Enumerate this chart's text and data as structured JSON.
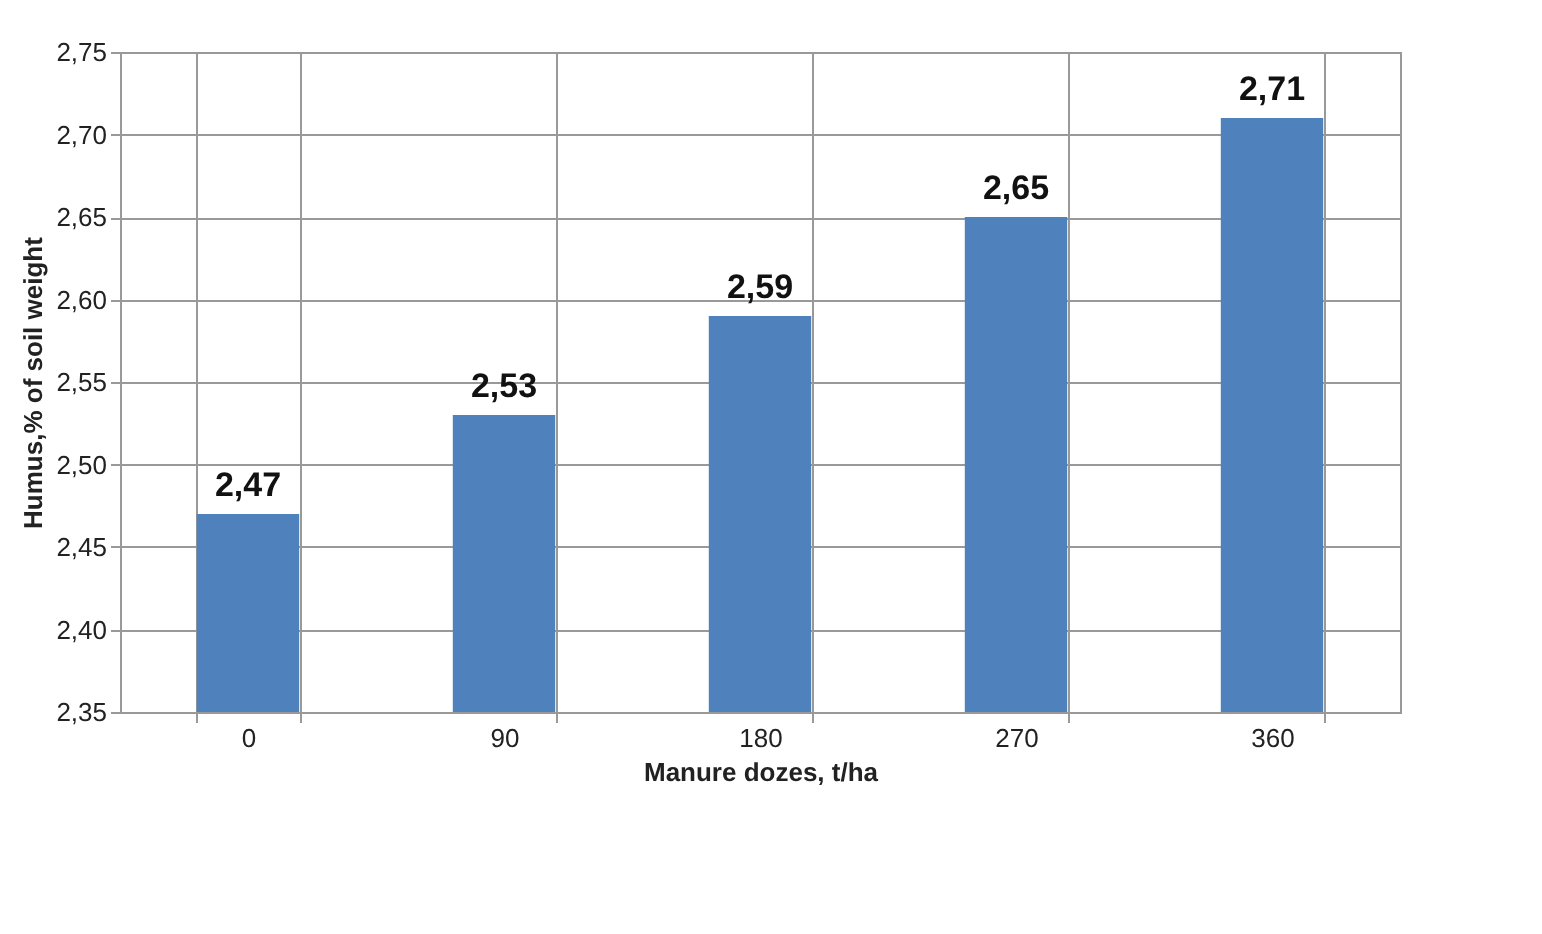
{
  "chart_data": {
    "type": "bar",
    "xlabel": "Manure dozes, t/ha",
    "ylabel": "Humus,% of soil weight",
    "categories": [
      "0",
      "90",
      "180",
      "270",
      "360"
    ],
    "values": [
      2.47,
      2.53,
      2.59,
      2.65,
      2.71
    ],
    "value_labels": [
      "2,47",
      "2,53",
      "2,59",
      "2,65",
      "2,71"
    ],
    "color": "#4f81bd",
    "ylim": [
      2.35,
      2.75
    ],
    "yticks": [
      {
        "value": 2.35,
        "label": "2,35"
      },
      {
        "value": 2.4,
        "label": "2,40"
      },
      {
        "value": 2.45,
        "label": "2,45"
      },
      {
        "value": 2.5,
        "label": "2,50"
      },
      {
        "value": 2.55,
        "label": "2,55"
      },
      {
        "value": 2.6,
        "label": "2,60"
      },
      {
        "value": 2.65,
        "label": "2,65"
      },
      {
        "value": 2.7,
        "label": "2,70"
      },
      {
        "value": 2.75,
        "label": "2,75"
      }
    ],
    "grid": true
  }
}
